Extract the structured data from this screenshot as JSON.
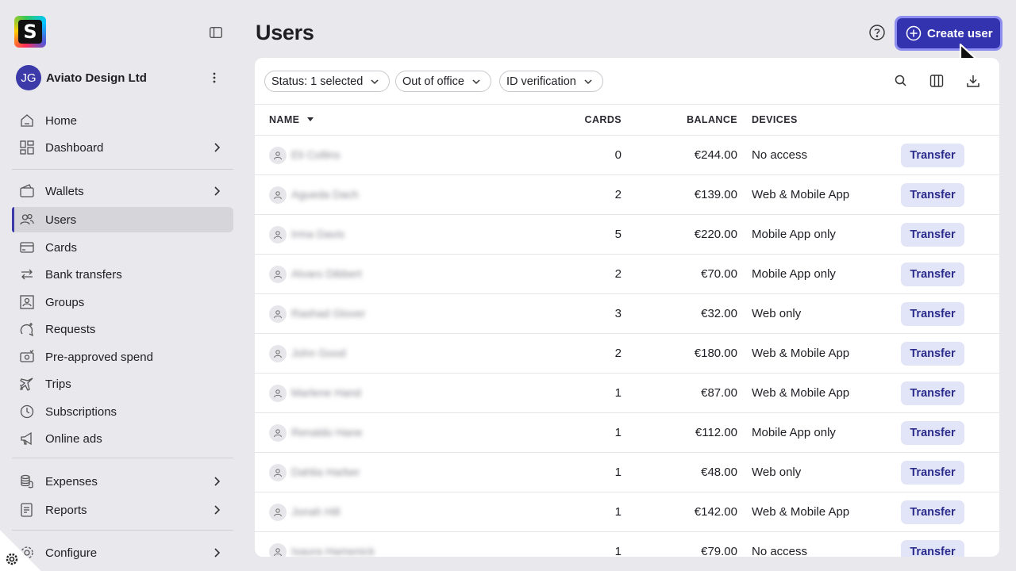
{
  "app": {
    "logo_letter": "S"
  },
  "org": {
    "initials": "JG",
    "name": "Aviato Design Ltd"
  },
  "sidebar": {
    "items": [
      {
        "label": "Home",
        "icon": "home-icon",
        "has_chevron": false
      },
      {
        "label": "Dashboard",
        "icon": "dashboard-icon",
        "has_chevron": true
      },
      {
        "label": "Wallets",
        "icon": "wallet-icon",
        "has_chevron": true
      },
      {
        "label": "Users",
        "icon": "users-icon",
        "has_chevron": false,
        "active": true
      },
      {
        "label": "Cards",
        "icon": "card-icon",
        "has_chevron": false
      },
      {
        "label": "Bank transfers",
        "icon": "transfer-arrows-icon",
        "has_chevron": false
      },
      {
        "label": "Groups",
        "icon": "groups-icon",
        "has_chevron": false
      },
      {
        "label": "Requests",
        "icon": "requests-icon",
        "has_chevron": false
      },
      {
        "label": "Pre-approved spend",
        "icon": "pre-approved-icon",
        "has_chevron": false
      },
      {
        "label": "Trips",
        "icon": "plane-icon",
        "has_chevron": false
      },
      {
        "label": "Subscriptions",
        "icon": "clock-icon",
        "has_chevron": false
      },
      {
        "label": "Online ads",
        "icon": "megaphone-icon",
        "has_chevron": false
      },
      {
        "label": "Expenses",
        "icon": "coins-icon",
        "has_chevron": true
      },
      {
        "label": "Reports",
        "icon": "report-icon",
        "has_chevron": true
      },
      {
        "label": "Configure",
        "icon": "gear-icon",
        "has_chevron": true
      }
    ]
  },
  "header": {
    "title": "Users",
    "create_label": "Create user"
  },
  "filters": [
    {
      "label": "Status: 1 selected"
    },
    {
      "label": "Out of office"
    },
    {
      "label": "ID verification"
    }
  ],
  "table": {
    "columns": {
      "name": "NAME",
      "cards": "CARDS",
      "balance": "BALANCE",
      "devices": "DEVICES"
    },
    "action_label": "Transfer",
    "rows": [
      {
        "name": "Eli Collins",
        "cards": "0",
        "balance": "€244.00",
        "devices": "No access"
      },
      {
        "name": "Agueda Dach",
        "cards": "2",
        "balance": "€139.00",
        "devices": "Web & Mobile App"
      },
      {
        "name": "Irma Davis",
        "cards": "5",
        "balance": "€220.00",
        "devices": "Mobile App only"
      },
      {
        "name": "Alvaro Dibbert",
        "cards": "2",
        "balance": "€70.00",
        "devices": "Mobile App only"
      },
      {
        "name": "Rashad Glover",
        "cards": "3",
        "balance": "€32.00",
        "devices": "Web only"
      },
      {
        "name": "John Good",
        "cards": "2",
        "balance": "€180.00",
        "devices": "Web & Mobile App"
      },
      {
        "name": "Marlene Hand",
        "cards": "1",
        "balance": "€87.00",
        "devices": "Web & Mobile App"
      },
      {
        "name": "Renaldo Hane",
        "cards": "1",
        "balance": "€112.00",
        "devices": "Mobile App only"
      },
      {
        "name": "Dahlia Harber",
        "cards": "1",
        "balance": "€48.00",
        "devices": "Web only"
      },
      {
        "name": "Jonah Hill",
        "cards": "1",
        "balance": "€142.00",
        "devices": "Web & Mobile App"
      },
      {
        "name": "Isaura Hamenick",
        "cards": "1",
        "balance": "€79.00",
        "devices": "No access"
      }
    ]
  },
  "colors": {
    "accent": "#3333b0",
    "active_nav": "#d6d5da",
    "transfer_bg": "#e2e4f8"
  }
}
